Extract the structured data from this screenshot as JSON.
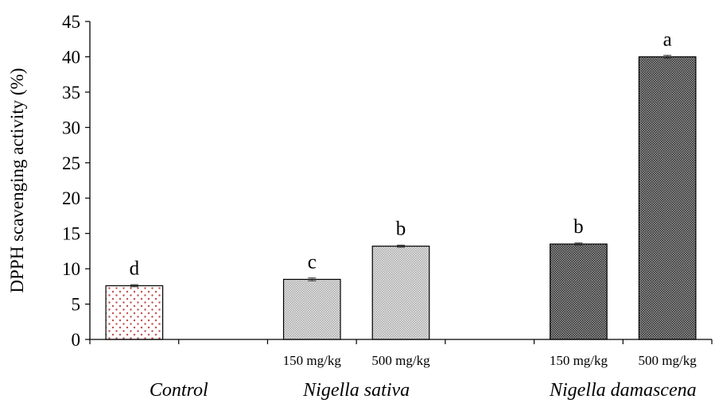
{
  "chart_data": {
    "type": "bar",
    "ylabel": "DPPH scavenging activity (%)",
    "ylim": [
      0,
      45
    ],
    "yticks": [
      0,
      5,
      10,
      15,
      20,
      25,
      30,
      35,
      40,
      45
    ],
    "grid": false,
    "groups": [
      {
        "label": "Control",
        "sub_labels": [
          ""
        ]
      },
      {
        "label": "Nigella sativa",
        "sub_labels": [
          "150 mg/kg",
          "500 mg/kg"
        ]
      },
      {
        "label": "Nigella damascena",
        "sub_labels": [
          "150 mg/kg",
          "500 mg/kg"
        ]
      }
    ],
    "bars": [
      {
        "group": "Control",
        "dose": "",
        "value": 7.6,
        "error": 0.15,
        "letter": "d",
        "fill": "dots",
        "color": "#c0504d"
      },
      {
        "group": "Nigella sativa",
        "dose": "150 mg/kg",
        "value": 8.5,
        "error": 0.2,
        "letter": "c",
        "fill": "light-check",
        "color": "#bdbdbd"
      },
      {
        "group": "Nigella sativa",
        "dose": "500 mg/kg",
        "value": 13.2,
        "error": 0.15,
        "letter": "b",
        "fill": "light-check",
        "color": "#bdbdbd"
      },
      {
        "group": "Nigella damascena",
        "dose": "150 mg/kg",
        "value": 13.5,
        "error": 0.15,
        "letter": "b",
        "fill": "dark-check",
        "color": "#555555"
      },
      {
        "group": "Nigella damascena",
        "dose": "500 mg/kg",
        "value": 40.0,
        "error": 0.2,
        "letter": "a",
        "fill": "dark-check",
        "color": "#555555"
      }
    ]
  }
}
